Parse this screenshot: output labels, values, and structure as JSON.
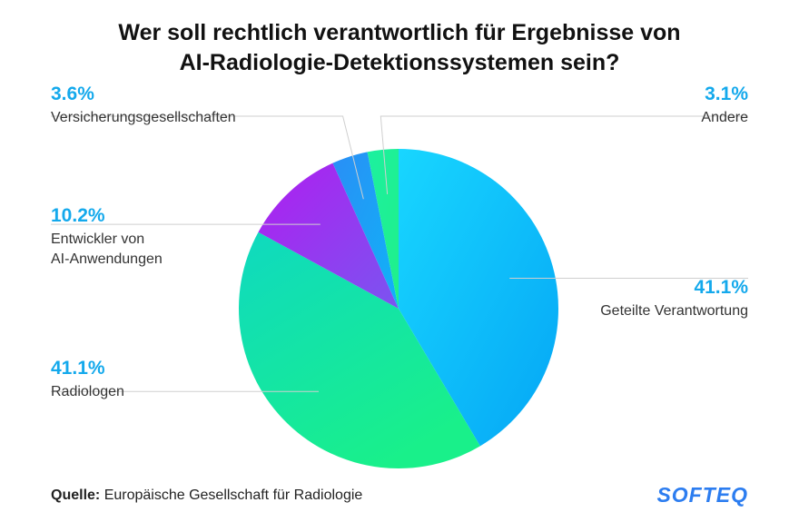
{
  "title_line1": "Wer soll rechtlich verantwortlich für Ergebnisse von",
  "title_line2": "AI-Radiologie-Detektionssystemen sein?",
  "source_label": "Quelle:",
  "source_text": "Europäische Gesellschaft für Radiologie",
  "logo_text": "SOFTEQ",
  "chart_data": {
    "type": "pie",
    "title": "Wer soll rechtlich verantwortlich für Ergebnisse von AI-Radiologie-Detektionssystemen sein?",
    "slices": [
      {
        "label_lines": [
          "Geteilte Verantwortung"
        ],
        "value": 41.1,
        "value_text": "41.1%",
        "color": "#10b8f7"
      },
      {
        "label_lines": [
          "Radiologen"
        ],
        "value": 41.1,
        "value_text": "41.1%",
        "color": "#10e3a6"
      },
      {
        "label_lines": [
          "Entwickler von",
          "AI-Anwendungen"
        ],
        "value": 10.2,
        "value_text": "10.2%",
        "color": "#9b3df0"
      },
      {
        "label_lines": [
          "Versicherungsgesellschaften"
        ],
        "value": 3.6,
        "value_text": "3.6%",
        "color": "#1a9cf5"
      },
      {
        "label_lines": [
          "Andere"
        ],
        "value": 3.1,
        "value_text": "3.1%",
        "color": "#1cf09a"
      }
    ]
  }
}
